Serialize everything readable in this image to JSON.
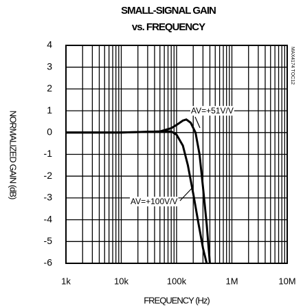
{
  "chart_data": {
    "type": "line",
    "title": "SMALL-SIGNAL GAIN",
    "subtitle": "vs. FREQUENCY",
    "xlabel": "FREQUENCY (Hz)",
    "ylabel": "NORMALIZED GAIN (dB)",
    "watermark": "MAX4174 TOC12",
    "xscale": "log",
    "xlim": [
      1000,
      10000000
    ],
    "ylim": [
      -6,
      4
    ],
    "xticks": [
      {
        "value": 1000,
        "label": "1k"
      },
      {
        "value": 10000,
        "label": "10k"
      },
      {
        "value": 100000,
        "label": "100k"
      },
      {
        "value": 1000000,
        "label": "1M"
      },
      {
        "value": 10000000,
        "label": "10M"
      }
    ],
    "yticks": [
      -6,
      -5,
      -4,
      -3,
      -2,
      -1,
      0,
      1,
      2,
      3,
      4
    ],
    "grid": true,
    "series": [
      {
        "name": "AV=+51V/V",
        "color": "#000000",
        "x": [
          1000,
          10000,
          50000,
          80000,
          100000,
          130000,
          150000,
          180000,
          220000,
          260000,
          300000,
          350000,
          400000
        ],
        "values": [
          0,
          0,
          0.05,
          0.2,
          0.35,
          0.55,
          0.6,
          0.45,
          0,
          -1,
          -2.5,
          -4.2,
          -6
        ]
      },
      {
        "name": "AV=+100V/V",
        "color": "#000000",
        "x": [
          1000,
          10000,
          50000,
          80000,
          100000,
          130000,
          160000,
          200000,
          250000,
          300000,
          350000
        ],
        "values": [
          0,
          0,
          0.05,
          0.05,
          -0.1,
          -0.6,
          -1.5,
          -2.8,
          -4.2,
          -5.3,
          -6
        ]
      }
    ]
  }
}
